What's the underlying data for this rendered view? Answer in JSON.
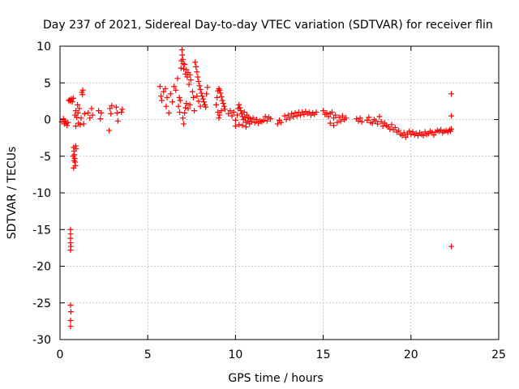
{
  "chart_data": {
    "type": "scatter",
    "title": "Day 237 of 2021, Sidereal Day-to-day VTEC variation (SDTVAR) for receiver flin",
    "xlabel": "GPS time / hours",
    "ylabel": "SDTVAR / TECUs",
    "xlim": [
      0,
      25
    ],
    "ylim": [
      -30,
      10
    ],
    "xticks": [
      0,
      5,
      10,
      15,
      20,
      25
    ],
    "yticks": [
      10,
      5,
      0,
      -5,
      -10,
      -15,
      -20,
      -25,
      -30
    ],
    "grid": true,
    "marker": "+",
    "color": "#ff0000",
    "series": [
      {
        "name": "SDTVAR",
        "points": [
          [
            0.1,
            -0.3
          ],
          [
            0.2,
            0.1
          ],
          [
            0.25,
            -0.6
          ],
          [
            0.3,
            -0.2
          ],
          [
            0.35,
            -0.5
          ],
          [
            0.4,
            -0.8
          ],
          [
            0.45,
            -0.4
          ],
          [
            0.5,
            2.6
          ],
          [
            0.55,
            2.7
          ],
          [
            0.6,
            2.5
          ],
          [
            0.65,
            2.8
          ],
          [
            0.7,
            2.4
          ],
          [
            0.75,
            2.9
          ],
          [
            0.6,
            -15.0
          ],
          [
            0.6,
            -15.6
          ],
          [
            0.6,
            -16.2
          ],
          [
            0.6,
            -16.8
          ],
          [
            0.62,
            -17.3
          ],
          [
            0.6,
            -17.8
          ],
          [
            0.6,
            -25.3
          ],
          [
            0.62,
            -26.2
          ],
          [
            0.6,
            -27.4
          ],
          [
            0.6,
            -28.2
          ],
          [
            0.78,
            -3.8
          ],
          [
            0.8,
            -4.3
          ],
          [
            0.82,
            -4.8
          ],
          [
            0.84,
            -5.3
          ],
          [
            0.86,
            -5.8
          ],
          [
            0.88,
            -6.3
          ],
          [
            0.78,
            -6.6
          ],
          [
            0.9,
            -3.6
          ],
          [
            0.92,
            -4.0
          ],
          [
            0.75,
            -5.0
          ],
          [
            0.8,
            -5.6
          ],
          [
            0.85,
            0.6
          ],
          [
            0.9,
            1.2
          ],
          [
            0.95,
            0.3
          ],
          [
            1.0,
            2.0
          ],
          [
            1.02,
            0.9
          ],
          [
            0.9,
            -0.9
          ],
          [
            1.05,
            -0.5
          ],
          [
            1.1,
            1.5
          ],
          [
            1.15,
            -0.7
          ],
          [
            1.2,
            0.2
          ],
          [
            1.25,
            3.7
          ],
          [
            1.3,
            4.0
          ],
          [
            1.28,
            3.4
          ],
          [
            1.35,
            -0.6
          ],
          [
            1.4,
            0.8
          ],
          [
            1.6,
            0.9
          ],
          [
            1.7,
            0.2
          ],
          [
            1.8,
            1.5
          ],
          [
            1.85,
            0.6
          ],
          [
            2.2,
            1.2
          ],
          [
            2.3,
            0.1
          ],
          [
            2.35,
            0.9
          ],
          [
            2.8,
            -1.5
          ],
          [
            2.85,
            1.5
          ],
          [
            2.9,
            0.8
          ],
          [
            2.95,
            1.9
          ],
          [
            3.2,
            1.7
          ],
          [
            3.25,
            0.9
          ],
          [
            3.3,
            -0.2
          ],
          [
            3.5,
            1.0
          ],
          [
            3.55,
            1.4
          ],
          [
            5.7,
            4.5
          ],
          [
            5.75,
            3.2
          ],
          [
            5.8,
            2.6
          ],
          [
            5.9,
            3.8
          ],
          [
            6.0,
            4.2
          ],
          [
            6.05,
            1.8
          ],
          [
            6.1,
            3.0
          ],
          [
            6.2,
            0.9
          ],
          [
            6.3,
            3.5
          ],
          [
            6.4,
            2.4
          ],
          [
            6.5,
            4.5
          ],
          [
            6.6,
            4.0
          ],
          [
            6.7,
            5.6
          ],
          [
            6.75,
            1.8
          ],
          [
            6.8,
            3.0
          ],
          [
            6.82,
            1.0
          ],
          [
            6.9,
            7.0
          ],
          [
            6.92,
            8.0
          ],
          [
            6.95,
            9.5
          ],
          [
            6.97,
            8.8
          ],
          [
            7.0,
            8.2
          ],
          [
            7.02,
            7.6
          ],
          [
            7.05,
            6.9
          ],
          [
            7.1,
            7.5
          ],
          [
            7.15,
            6.2
          ],
          [
            7.2,
            6.8
          ],
          [
            7.25,
            5.8
          ],
          [
            7.3,
            6.4
          ],
          [
            7.35,
            4.8
          ],
          [
            7.4,
            6.1
          ],
          [
            7.45,
            5.4
          ],
          [
            7.0,
            0.2
          ],
          [
            7.05,
            -0.6
          ],
          [
            7.1,
            0.9
          ],
          [
            7.15,
            1.6
          ],
          [
            7.2,
            2.2
          ],
          [
            7.3,
            1.5
          ],
          [
            7.4,
            2.0
          ],
          [
            6.85,
            2.6
          ],
          [
            7.55,
            3.8
          ],
          [
            7.6,
            3.0
          ],
          [
            7.65,
            1.2
          ],
          [
            7.7,
            7.8
          ],
          [
            7.75,
            7.2
          ],
          [
            7.8,
            6.5
          ],
          [
            7.85,
            5.8
          ],
          [
            7.9,
            5.2
          ],
          [
            7.95,
            4.6
          ],
          [
            8.0,
            4.1
          ],
          [
            8.05,
            3.6
          ],
          [
            8.1,
            3.2
          ],
          [
            8.15,
            2.8
          ],
          [
            8.2,
            2.4
          ],
          [
            8.25,
            2.0
          ],
          [
            8.3,
            1.7
          ],
          [
            8.35,
            3.5
          ],
          [
            8.4,
            4.4
          ],
          [
            7.8,
            3.2
          ],
          [
            7.9,
            2.5
          ],
          [
            8.0,
            1.8
          ],
          [
            8.9,
            2.0
          ],
          [
            8.95,
            3.0
          ],
          [
            9.0,
            3.9
          ],
          [
            9.05,
            4.2
          ],
          [
            9.1,
            4.0
          ],
          [
            9.15,
            3.6
          ],
          [
            9.2,
            3.1
          ],
          [
            9.25,
            2.6
          ],
          [
            9.3,
            2.2
          ],
          [
            9.35,
            1.8
          ],
          [
            9.4,
            1.4
          ],
          [
            9.0,
            1.0
          ],
          [
            9.1,
            0.6
          ],
          [
            9.2,
            1.2
          ],
          [
            9.05,
            0.2
          ],
          [
            9.6,
            0.8
          ],
          [
            9.7,
            1.2
          ],
          [
            9.8,
            0.5
          ],
          [
            9.9,
            1.0
          ],
          [
            10.0,
            -0.1
          ],
          [
            10.1,
            0.6
          ],
          [
            10.15,
            1.5
          ],
          [
            10.2,
            2.0
          ],
          [
            10.25,
            1.6
          ],
          [
            10.3,
            1.2
          ],
          [
            10.35,
            0.8
          ],
          [
            10.4,
            0.4
          ],
          [
            10.45,
            0.0
          ],
          [
            10.5,
            1.0
          ],
          [
            10.55,
            0.2
          ],
          [
            10.6,
            -0.4
          ],
          [
            10.65,
            0.6
          ],
          [
            10.7,
            -0.2
          ],
          [
            10.75,
            0.3
          ],
          [
            10.8,
            -0.6
          ],
          [
            10.85,
            0.1
          ],
          [
            10.9,
            -0.3
          ],
          [
            10.0,
            -0.9
          ],
          [
            10.2,
            -0.7
          ],
          [
            10.4,
            -0.8
          ],
          [
            10.6,
            -1.0
          ],
          [
            11.0,
            0.2
          ],
          [
            11.1,
            -0.4
          ],
          [
            11.2,
            0.0
          ],
          [
            11.3,
            -0.5
          ],
          [
            11.4,
            -0.2
          ],
          [
            11.5,
            -0.3
          ],
          [
            11.6,
            -0.1
          ],
          [
            11.7,
            0.4
          ],
          [
            11.8,
            -0.2
          ],
          [
            11.9,
            0.3
          ],
          [
            12.0,
            0.1
          ],
          [
            12.4,
            -0.6
          ],
          [
            12.5,
            -0.1
          ],
          [
            12.6,
            -0.4
          ],
          [
            12.8,
            0.5
          ],
          [
            12.9,
            0.0
          ],
          [
            13.0,
            0.6
          ],
          [
            13.1,
            0.2
          ],
          [
            13.2,
            0.8
          ],
          [
            13.3,
            0.4
          ],
          [
            13.4,
            0.9
          ],
          [
            13.5,
            0.5
          ],
          [
            13.6,
            1.0
          ],
          [
            13.7,
            0.6
          ],
          [
            13.8,
            1.0
          ],
          [
            13.9,
            0.7
          ],
          [
            14.0,
            1.1
          ],
          [
            14.1,
            0.8
          ],
          [
            14.2,
            1.0
          ],
          [
            14.3,
            0.6
          ],
          [
            14.4,
            0.9
          ],
          [
            14.5,
            0.7
          ],
          [
            14.6,
            1.0
          ],
          [
            15.0,
            1.2
          ],
          [
            15.1,
            0.7
          ],
          [
            15.2,
            0.9
          ],
          [
            15.3,
            0.4
          ],
          [
            15.4,
            0.8
          ],
          [
            15.5,
            1.0
          ],
          [
            15.6,
            0.2
          ],
          [
            15.7,
            0.6
          ],
          [
            15.8,
            -0.4
          ],
          [
            15.9,
            0.3
          ],
          [
            16.0,
            -0.2
          ],
          [
            16.1,
            0.5
          ],
          [
            16.2,
            0.0
          ],
          [
            16.3,
            0.2
          ],
          [
            15.4,
            -0.5
          ],
          [
            15.6,
            -0.8
          ],
          [
            16.9,
            0.1
          ],
          [
            17.0,
            -0.2
          ],
          [
            17.1,
            0.2
          ],
          [
            17.2,
            -0.3
          ],
          [
            17.5,
            -0.1
          ],
          [
            17.6,
            0.3
          ],
          [
            17.7,
            -0.4
          ],
          [
            17.8,
            -0.5
          ],
          [
            17.9,
            0.0
          ],
          [
            18.0,
            -0.2
          ],
          [
            18.1,
            -0.6
          ],
          [
            18.2,
            0.4
          ],
          [
            18.3,
            -0.3
          ],
          [
            18.4,
            -0.9
          ],
          [
            18.5,
            -0.5
          ],
          [
            18.6,
            -0.8
          ],
          [
            18.7,
            -1.0
          ],
          [
            18.8,
            -1.3
          ],
          [
            18.9,
            -0.7
          ],
          [
            19.0,
            -1.4
          ],
          [
            19.1,
            -1.1
          ],
          [
            19.2,
            -1.7
          ],
          [
            19.3,
            -1.5
          ],
          [
            19.4,
            -2.0
          ],
          [
            19.5,
            -2.2
          ],
          [
            19.6,
            -1.8
          ],
          [
            19.7,
            -2.4
          ],
          [
            19.8,
            -2.0
          ],
          [
            19.9,
            -1.6
          ],
          [
            20.0,
            -2.0
          ],
          [
            20.1,
            -1.7
          ],
          [
            20.2,
            -2.1
          ],
          [
            20.3,
            -1.9
          ],
          [
            20.4,
            -2.2
          ],
          [
            20.5,
            -1.8
          ],
          [
            20.6,
            -2.0
          ],
          [
            20.7,
            -2.2
          ],
          [
            20.8,
            -1.7
          ],
          [
            20.9,
            -2.0
          ],
          [
            21.0,
            -1.9
          ],
          [
            21.1,
            -1.6
          ],
          [
            21.2,
            -1.8
          ],
          [
            21.3,
            -2.1
          ],
          [
            21.4,
            -1.7
          ],
          [
            21.5,
            -1.5
          ],
          [
            21.6,
            -1.6
          ],
          [
            21.7,
            -1.4
          ],
          [
            21.8,
            -1.8
          ],
          [
            21.9,
            -1.6
          ],
          [
            22.0,
            -1.5
          ],
          [
            22.1,
            -1.7
          ],
          [
            22.2,
            -1.4
          ],
          [
            22.25,
            -1.6
          ],
          [
            22.3,
            -1.3
          ],
          [
            22.3,
            3.5
          ],
          [
            22.3,
            0.5
          ],
          [
            22.3,
            -17.3
          ]
        ]
      }
    ]
  }
}
